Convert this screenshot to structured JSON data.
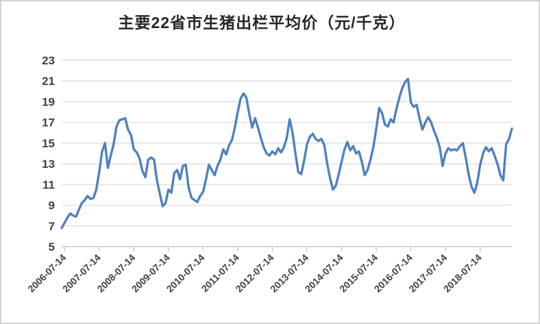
{
  "title": "主要22省市生猪出栏平均价（元/千克）",
  "colors": {
    "line": "#4f81bd",
    "gridline": "#d9d9d9",
    "axis_line": "#bfbfbf",
    "axis_label": "#404040",
    "title_text": "#262626",
    "background": "#ffffff"
  },
  "chart_data": {
    "type": "line",
    "title": "主要22省市生猪出栏平均价（元/千克）",
    "xlabel": "",
    "ylabel": "",
    "ylim": [
      5,
      23
    ],
    "ytick_step": 2,
    "ytick_labels": [
      "23",
      "21",
      "19",
      "17",
      "15",
      "13",
      "11",
      "9",
      "7",
      "5"
    ],
    "grid": "horizontal",
    "legend": "none",
    "x_tick_labels": [
      "2006-07-14",
      "2007-07-14",
      "2008-07-14",
      "2009-07-14",
      "2010-07-14",
      "2011-07-14",
      "2012-07-14",
      "2013-07-14",
      "2014-07-14",
      "2015-07-14",
      "2016-07-14",
      "2017-07-14",
      "2018-07-14"
    ],
    "x": [
      "2006-06",
      "2006-07",
      "2006-08",
      "2006-09",
      "2006-10",
      "2006-11",
      "2006-12",
      "2007-01",
      "2007-02",
      "2007-03",
      "2007-04",
      "2007-05",
      "2007-06",
      "2007-07",
      "2007-08",
      "2007-09",
      "2007-10",
      "2007-11",
      "2007-12",
      "2008-01",
      "2008-02",
      "2008-03",
      "2008-04",
      "2008-05",
      "2008-06",
      "2008-07",
      "2008-08",
      "2008-09",
      "2008-10",
      "2008-11",
      "2008-12",
      "2009-01",
      "2009-02",
      "2009-03",
      "2009-04",
      "2009-05",
      "2009-06",
      "2009-07",
      "2009-08",
      "2009-09",
      "2009-10",
      "2009-11",
      "2009-12",
      "2010-01",
      "2010-02",
      "2010-03",
      "2010-04",
      "2010-05",
      "2010-06",
      "2010-07",
      "2010-08",
      "2010-09",
      "2010-10",
      "2010-11",
      "2010-12",
      "2011-01",
      "2011-02",
      "2011-03",
      "2011-04",
      "2011-05",
      "2011-06",
      "2011-07",
      "2011-08",
      "2011-09",
      "2011-10",
      "2011-11",
      "2011-12",
      "2012-01",
      "2012-02",
      "2012-03",
      "2012-04",
      "2012-05",
      "2012-06",
      "2012-07",
      "2012-08",
      "2012-09",
      "2012-10",
      "2012-11",
      "2012-12",
      "2013-01",
      "2013-02",
      "2013-03",
      "2013-04",
      "2013-05",
      "2013-06",
      "2013-07",
      "2013-08",
      "2013-09",
      "2013-10",
      "2013-11",
      "2013-12",
      "2014-01",
      "2014-02",
      "2014-03",
      "2014-04",
      "2014-05",
      "2014-06",
      "2014-07",
      "2014-08",
      "2014-09",
      "2014-10",
      "2014-11",
      "2014-12",
      "2015-01",
      "2015-02",
      "2015-03",
      "2015-04",
      "2015-05",
      "2015-06",
      "2015-07",
      "2015-08",
      "2015-09",
      "2015-10",
      "2015-11",
      "2015-12",
      "2016-01",
      "2016-02",
      "2016-03",
      "2016-04",
      "2016-05",
      "2016-06",
      "2016-07",
      "2016-08",
      "2016-09",
      "2016-10",
      "2016-11",
      "2016-12",
      "2017-01",
      "2017-02",
      "2017-03",
      "2017-04",
      "2017-05",
      "2017-06",
      "2017-07",
      "2017-08",
      "2017-09",
      "2017-10",
      "2017-11",
      "2017-12",
      "2018-01",
      "2018-02",
      "2018-03",
      "2018-04",
      "2018-05",
      "2018-06",
      "2018-07",
      "2018-08",
      "2018-09",
      "2018-10",
      "2018-11",
      "2018-12",
      "2019-01",
      "2019-02",
      "2019-03",
      "2019-04",
      "2019-05",
      "2019-06"
    ],
    "values": [
      6.8,
      7.3,
      7.8,
      8.2,
      8.0,
      7.9,
      8.6,
      9.2,
      9.5,
      9.9,
      9.6,
      9.7,
      10.5,
      12.2,
      14.2,
      15.0,
      12.6,
      13.8,
      14.9,
      16.6,
      17.2,
      17.3,
      17.4,
      16.3,
      15.8,
      14.4,
      14.1,
      13.5,
      12.3,
      11.7,
      13.4,
      13.6,
      13.4,
      11.4,
      10.1,
      8.9,
      9.2,
      10.5,
      10.2,
      12.1,
      12.4,
      11.5,
      12.8,
      12.9,
      10.7,
      9.7,
      9.5,
      9.3,
      9.9,
      10.3,
      11.5,
      12.9,
      12.4,
      11.9,
      12.8,
      13.4,
      14.4,
      13.9,
      14.8,
      15.3,
      16.5,
      18.0,
      19.3,
      19.8,
      19.4,
      17.8,
      16.5,
      17.4,
      16.5,
      15.5,
      14.6,
      14.0,
      13.8,
      14.2,
      13.9,
      14.5,
      14.1,
      14.6,
      15.5,
      17.3,
      16.0,
      14.0,
      12.2,
      12.0,
      13.3,
      14.9,
      15.6,
      15.9,
      15.4,
      15.2,
      15.4,
      14.8,
      13.0,
      11.6,
      10.5,
      10.9,
      12.0,
      13.2,
      14.4,
      15.1,
      14.3,
      14.7,
      14.0,
      14.2,
      13.2,
      11.9,
      12.4,
      13.4,
      14.6,
      16.4,
      18.4,
      17.9,
      16.8,
      16.6,
      17.3,
      17.0,
      18.3,
      19.4,
      20.3,
      20.9,
      21.2,
      18.9,
      18.5,
      18.7,
      17.4,
      16.3,
      17.0,
      17.5,
      17.0,
      16.2,
      15.5,
      14.6,
      12.8,
      14.0,
      14.5,
      14.3,
      14.4,
      14.3,
      14.7,
      15.0,
      13.6,
      12.0,
      10.8,
      10.2,
      11.2,
      12.9,
      14.0,
      14.6,
      14.2,
      14.5,
      13.8,
      13.0,
      11.9,
      11.4,
      14.9,
      15.4,
      16.4
    ]
  }
}
